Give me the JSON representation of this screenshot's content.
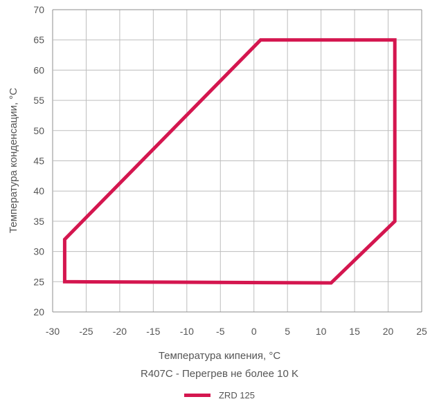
{
  "colors": {
    "series": "#d4164f",
    "grid": "#bdbdbd",
    "axis": "#8c8c8c"
  },
  "chart_data": {
    "type": "line",
    "xlabel": "Температура кипения, °C",
    "subtitle": "R407C - Перегрев не более 10 K",
    "ylabel": "Температура конденсации, °C",
    "xlim": [
      -30,
      25
    ],
    "ylim": [
      20,
      70
    ],
    "xticks": [
      -30,
      -25,
      -20,
      -15,
      -10,
      -5,
      0,
      5,
      10,
      15,
      20,
      25
    ],
    "yticks": [
      20,
      25,
      30,
      35,
      40,
      45,
      50,
      55,
      60,
      65,
      70
    ],
    "grid": true,
    "legend_position": "bottom",
    "series": [
      {
        "name": "ZRD 125",
        "closed": true,
        "points": [
          [
            -28.2,
            25
          ],
          [
            -28.2,
            32
          ],
          [
            1,
            65
          ],
          [
            21,
            65
          ],
          [
            21,
            35
          ],
          [
            11.5,
            24.8
          ],
          [
            -28.2,
            25
          ]
        ]
      }
    ]
  }
}
